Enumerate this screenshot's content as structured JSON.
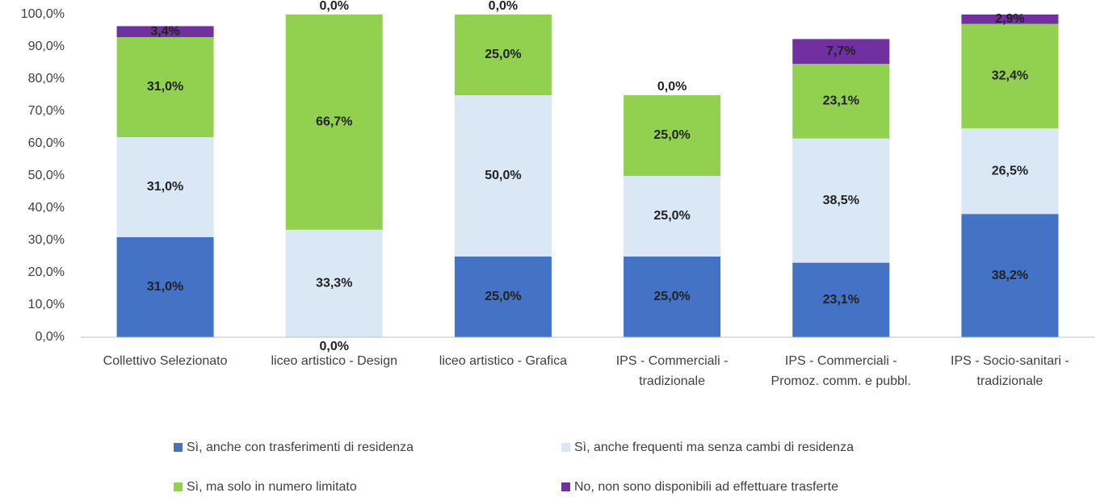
{
  "chart_data": {
    "type": "stacked-bar",
    "categories": [
      "Collettivo Selezionato",
      "liceo artistico - Design",
      "liceo artistico - Grafica",
      "IPS - Commerciali - tradizionale",
      "IPS - Commerciali - Promoz. comm. e pubbl.",
      "IPS - Socio-sanitari - tradizionale"
    ],
    "series": [
      {
        "name": "Sì, anche con trasferimenti di residenza",
        "color": "#4472c4",
        "values": [
          31.0,
          0.0,
          25.0,
          25.0,
          23.1,
          38.2
        ],
        "value_labels": [
          "31,0%",
          "0,0%",
          "25,0%",
          "25,0%",
          "23,1%",
          "38,2%"
        ]
      },
      {
        "name": "Sì, anche frequenti ma senza cambi di residenza",
        "color": "#dae8f6",
        "values": [
          31.0,
          33.3,
          50.0,
          25.0,
          38.5,
          26.5
        ],
        "value_labels": [
          "31,0%",
          "33,3%",
          "50,0%",
          "25,0%",
          "38,5%",
          "26,5%"
        ]
      },
      {
        "name": "Sì, ma solo in numero limitato",
        "color": "#92d050",
        "values": [
          31.0,
          66.7,
          25.0,
          25.0,
          23.1,
          32.4
        ],
        "value_labels": [
          "31,0%",
          "66,7%",
          "25,0%",
          "25,0%",
          "23,1%",
          "32,4%"
        ]
      },
      {
        "name": "No, non sono disponibili ad effettuare trasferte",
        "color": "#7030a0",
        "values": [
          3.4,
          0.0,
          0.0,
          0.0,
          7.7,
          2.9
        ],
        "value_labels": [
          "3,4%",
          "0,0%",
          "0,0%",
          "0,0%",
          "7,7%",
          "2,9%"
        ]
      }
    ],
    "ylim": [
      0,
      100
    ],
    "yticks": [
      {
        "value": 0,
        "label": "0,0%"
      },
      {
        "value": 10,
        "label": "10,0%"
      },
      {
        "value": 20,
        "label": "20,0%"
      },
      {
        "value": 30,
        "label": "30,0%"
      },
      {
        "value": 40,
        "label": "40,0%"
      },
      {
        "value": 50,
        "label": "50,0%"
      },
      {
        "value": 60,
        "label": "60,0%"
      },
      {
        "value": 70,
        "label": "70,0%"
      },
      {
        "value": 80,
        "label": "80,0%"
      },
      {
        "value": 90,
        "label": "90,0%"
      },
      {
        "value": 100,
        "label": "100,0%"
      }
    ],
    "grid": false,
    "legend": "bottom"
  }
}
